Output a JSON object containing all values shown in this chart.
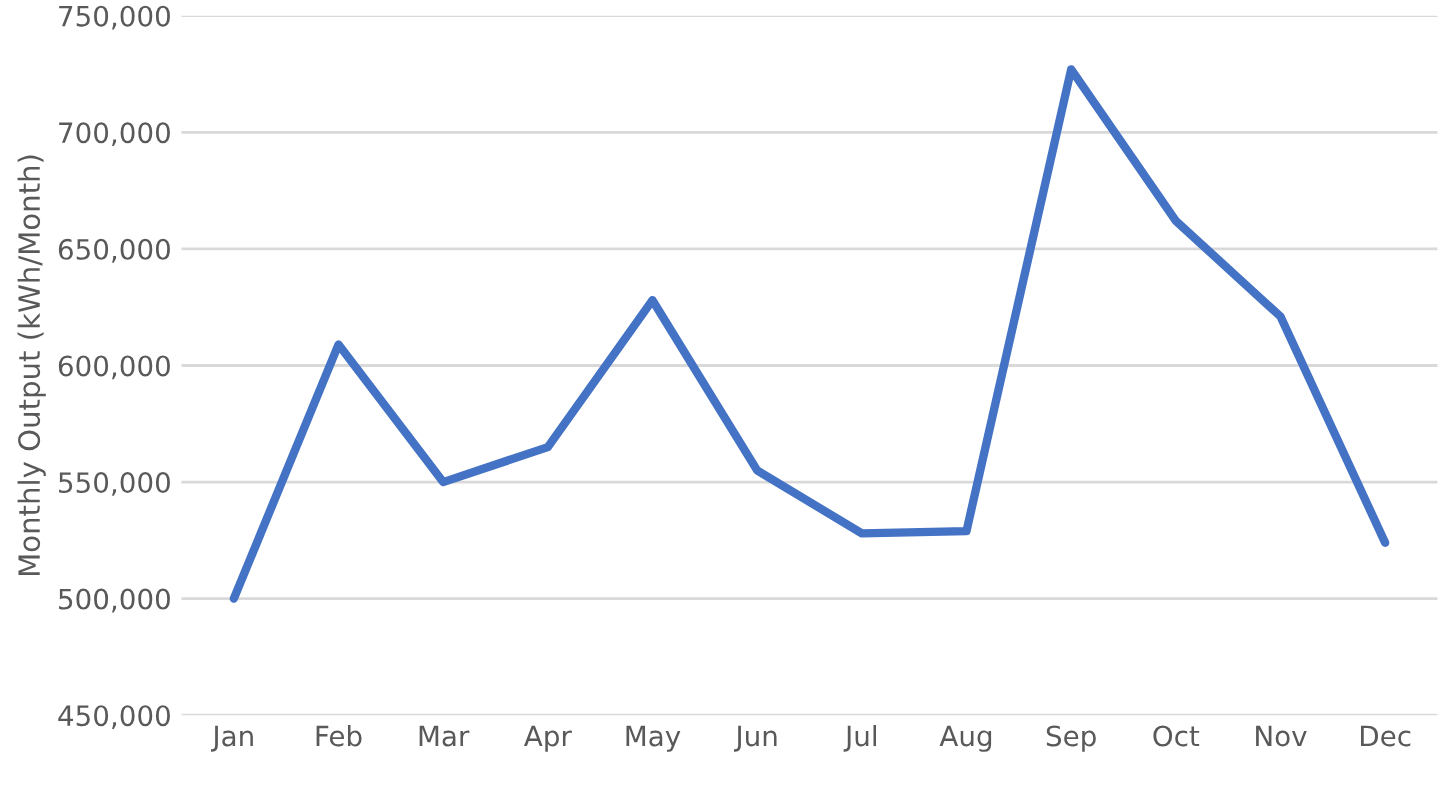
{
  "chart_data": {
    "type": "line",
    "ylabel": "Monthly Output (kWh/Month)",
    "categories": [
      "Jan",
      "Feb",
      "Mar",
      "Apr",
      "May",
      "Jun",
      "Jul",
      "Aug",
      "Sep",
      "Oct",
      "Nov",
      "Dec"
    ],
    "series": [
      {
        "color": "#4472c4",
        "values": [
          500000,
          609000,
          550000,
          565000,
          628000,
          555000,
          528000,
          529000,
          727000,
          662000,
          621000,
          524000
        ]
      }
    ],
    "ylim": [
      450000,
      750000
    ],
    "yticks": [
      {
        "value": 450000,
        "label": "450,000"
      },
      {
        "value": 500000,
        "label": "500,000"
      },
      {
        "value": 550000,
        "label": "550,000"
      },
      {
        "value": 600000,
        "label": "600,000"
      },
      {
        "value": 650000,
        "label": "650,000"
      },
      {
        "value": 700000,
        "label": "700,000"
      },
      {
        "value": 750000,
        "label": "750,000"
      }
    ],
    "grid": "y",
    "legend": false
  }
}
